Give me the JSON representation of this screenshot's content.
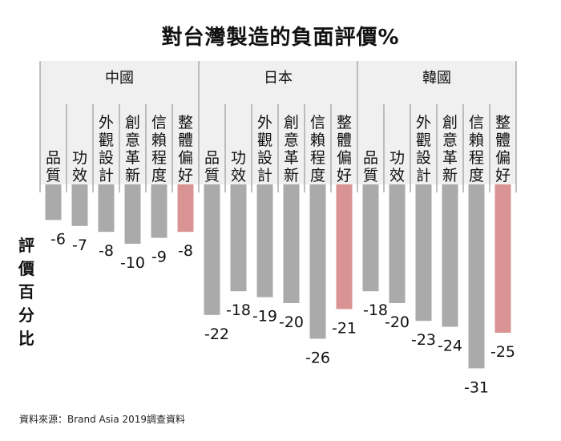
{
  "title": "對台灣製造的負面評價%",
  "source": "資料來源：Brand Asia 2019調查資料",
  "chart_data": {
    "type": "bar",
    "ylabel": "評價百分比",
    "ylim": [
      -31,
      0
    ],
    "categories": [
      "品質",
      "功效",
      "外觀設計",
      "創意革新",
      "信賴程度",
      "整體偏好"
    ],
    "highlight_category": "整體偏好",
    "colors": {
      "bar": "#aaaaaa",
      "highlight": "#d99393"
    },
    "series": [
      {
        "name": "中國",
        "values": [
          -6,
          -7,
          -8,
          -10,
          -9,
          -8
        ]
      },
      {
        "name": "日本",
        "values": [
          -22,
          -18,
          -19,
          -20,
          -26,
          -21
        ]
      },
      {
        "name": "韓國",
        "values": [
          -18,
          -20,
          -23,
          -24,
          -31,
          -25
        ]
      }
    ]
  }
}
